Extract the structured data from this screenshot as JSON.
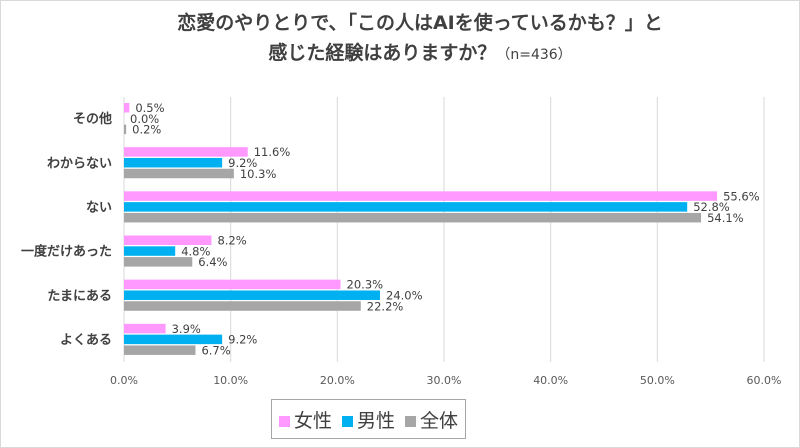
{
  "chart_data": {
    "type": "bar",
    "orientation": "horizontal",
    "title_line1": "恋愛のやりとりで、「この人はAIを使っているかも？」と",
    "title_line2": "感じた経験はありますか？",
    "title_note": "（n=436）",
    "categories": [
      "その他",
      "わからない",
      "ない",
      "一度だけあった",
      "たまにある",
      "よくある"
    ],
    "series": [
      {
        "name": "女性",
        "color": "#ff99ff",
        "values": [
          0.5,
          11.6,
          55.6,
          8.2,
          20.3,
          3.9
        ]
      },
      {
        "name": "男性",
        "color": "#00b0f0",
        "values": [
          0.0,
          9.2,
          52.8,
          4.8,
          24.0,
          9.2
        ]
      },
      {
        "name": "全体",
        "color": "#a6a6a6",
        "values": [
          0.2,
          10.3,
          54.1,
          6.4,
          22.2,
          6.7
        ]
      }
    ],
    "xlim": [
      0,
      60
    ],
    "xticks": [
      "0.0%",
      "10.0%",
      "20.0%",
      "30.0%",
      "40.0%",
      "50.0%",
      "60.0%"
    ],
    "grid": true,
    "legend_position": "bottom"
  }
}
